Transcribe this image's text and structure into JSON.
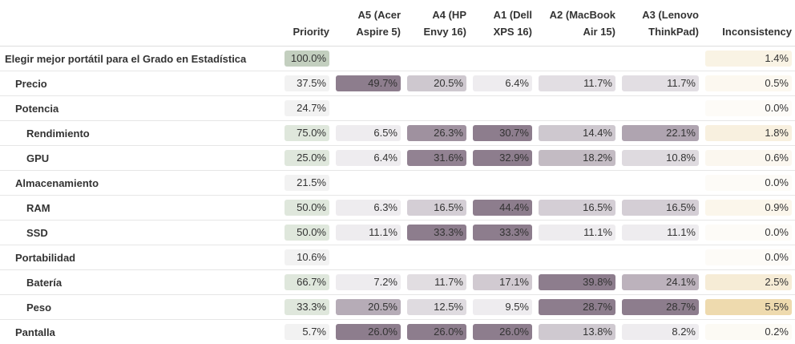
{
  "table": {
    "headers": {
      "priority": "Priority",
      "a5": "A5 (Acer\nAspire 5)",
      "a4": "A4 (HP\nEnvy 16)",
      "a1": "A1 (Dell\nXPS 16)",
      "a2": "A2 (MacBook\nAir 15)",
      "a3": "A3 (Lenovo\nThinkPad)",
      "inconsistency": "Inconsistency"
    },
    "rows": [
      {
        "name": "Elegir mejor portátil para el Grado en Estadística",
        "level": 0,
        "priority": "100.0%",
        "p": 1.0,
        "alts": null,
        "inconsistency": "1.4%",
        "inc": 0.014
      },
      {
        "name": "Precio",
        "level": 1,
        "priority": "37.5%",
        "p": 0.375,
        "alts": [
          "49.7%",
          "20.5%",
          "6.4%",
          "11.7%",
          "11.7%"
        ],
        "alt_values": [
          0.497,
          0.205,
          0.064,
          0.117,
          0.117
        ],
        "inconsistency": "0.5%",
        "inc": 0.005
      },
      {
        "name": "Potencia",
        "level": 1,
        "priority": "24.7%",
        "p": 0.247,
        "alts": null,
        "inconsistency": "0.0%",
        "inc": 0.0
      },
      {
        "name": "Rendimiento",
        "level": 2,
        "priority": "75.0%",
        "p": 0.75,
        "alts": [
          "6.5%",
          "26.3%",
          "30.7%",
          "14.4%",
          "22.1%"
        ],
        "alt_values": [
          0.065,
          0.263,
          0.307,
          0.144,
          0.221
        ],
        "inconsistency": "1.8%",
        "inc": 0.018
      },
      {
        "name": "GPU",
        "level": 2,
        "priority": "25.0%",
        "p": 0.25,
        "alts": [
          "6.4%",
          "31.6%",
          "32.9%",
          "18.2%",
          "10.8%"
        ],
        "alt_values": [
          0.064,
          0.316,
          0.329,
          0.182,
          0.108
        ],
        "inconsistency": "0.6%",
        "inc": 0.006
      },
      {
        "name": "Almacenamiento",
        "level": 1,
        "priority": "21.5%",
        "p": 0.215,
        "alts": null,
        "inconsistency": "0.0%",
        "inc": 0.0
      },
      {
        "name": "RAM",
        "level": 2,
        "priority": "50.0%",
        "p": 0.5,
        "alts": [
          "6.3%",
          "16.5%",
          "44.4%",
          "16.5%",
          "16.5%"
        ],
        "alt_values": [
          0.063,
          0.165,
          0.444,
          0.165,
          0.165
        ],
        "inconsistency": "0.9%",
        "inc": 0.009
      },
      {
        "name": "SSD",
        "level": 2,
        "priority": "50.0%",
        "p": 0.5,
        "alts": [
          "11.1%",
          "33.3%",
          "33.3%",
          "11.1%",
          "11.1%"
        ],
        "alt_values": [
          0.111,
          0.333,
          0.333,
          0.111,
          0.111
        ],
        "inconsistency": "0.0%",
        "inc": 0.0
      },
      {
        "name": "Portabilidad",
        "level": 1,
        "priority": "10.6%",
        "p": 0.106,
        "alts": null,
        "inconsistency": "0.0%",
        "inc": 0.0
      },
      {
        "name": "Batería",
        "level": 2,
        "priority": "66.7%",
        "p": 0.667,
        "alts": [
          "7.2%",
          "11.7%",
          "17.1%",
          "39.8%",
          "24.1%"
        ],
        "alt_values": [
          0.072,
          0.117,
          0.171,
          0.398,
          0.241
        ],
        "inconsistency": "2.5%",
        "inc": 0.025
      },
      {
        "name": "Peso",
        "level": 2,
        "priority": "33.3%",
        "p": 0.333,
        "alts": [
          "20.5%",
          "12.5%",
          "9.5%",
          "28.7%",
          "28.7%"
        ],
        "alt_values": [
          0.205,
          0.125,
          0.095,
          0.287,
          0.287
        ],
        "inconsistency": "5.5%",
        "inc": 0.055
      },
      {
        "name": "Pantalla",
        "level": 1,
        "priority": "5.7%",
        "p": 0.057,
        "alts": [
          "26.0%",
          "26.0%",
          "26.0%",
          "13.8%",
          "8.2%"
        ],
        "alt_values": [
          0.26,
          0.26,
          0.26,
          0.138,
          0.082
        ],
        "inconsistency": "0.2%",
        "inc": 0.002
      }
    ]
  },
  "colors": {
    "priority_cell": "#dfe7dc",
    "priority_cell_strong": "#c3cfbf",
    "alt_max": "#8d7d8d",
    "alt_min": "#eeecef",
    "inc_min": "#fdfbf7",
    "inc_max": "#eedaae"
  }
}
